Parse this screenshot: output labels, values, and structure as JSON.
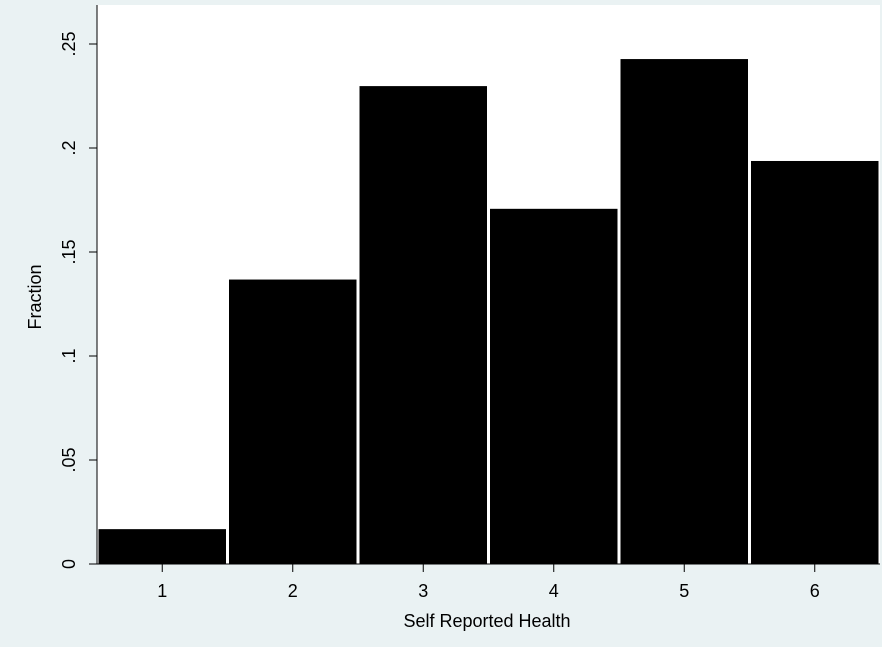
{
  "colors": {
    "outer_background": "#eaf2f3",
    "plot_background": "#ffffff",
    "bar_fill": "#000000",
    "bar_edge": "#ffffff",
    "axis": "#000000"
  },
  "chart_data": {
    "type": "bar",
    "title": "",
    "xlabel": "Self Reported Health",
    "ylabel": "Fraction",
    "categories": [
      "1",
      "2",
      "3",
      "4",
      "5",
      "6"
    ],
    "values": [
      0.017,
      0.137,
      0.23,
      0.171,
      0.243,
      0.194
    ],
    "ylim": [
      0,
      0.25
    ],
    "xlim": [
      0.5,
      6.5
    ],
    "y_ticks": [
      {
        "value": 0,
        "label": "0"
      },
      {
        "value": 0.05,
        "label": ".05"
      },
      {
        "value": 0.1,
        "label": ".1"
      },
      {
        "value": 0.15,
        "label": ".15"
      },
      {
        "value": 0.2,
        "label": ".2"
      },
      {
        "value": 0.25,
        "label": ".25"
      }
    ],
    "grid": false,
    "legend": "none"
  }
}
